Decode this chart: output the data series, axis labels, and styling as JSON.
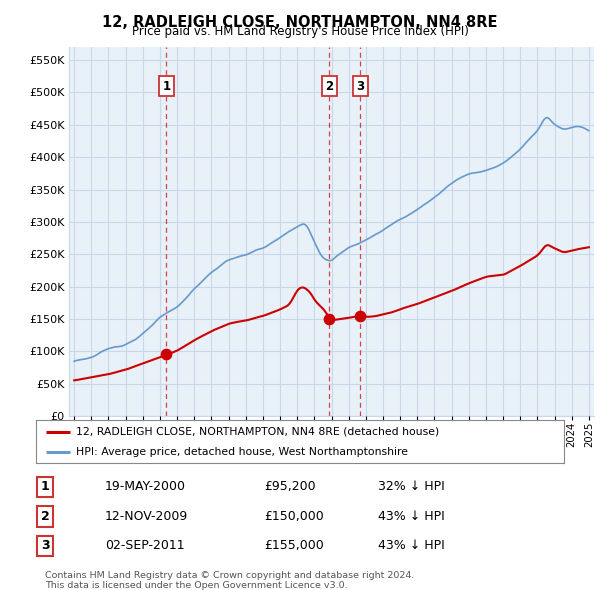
{
  "title": "12, RADLEIGH CLOSE, NORTHAMPTON, NN4 8RE",
  "subtitle": "Price paid vs. HM Land Registry's House Price Index (HPI)",
  "legend_line1": "12, RADLEIGH CLOSE, NORTHAMPTON, NN4 8RE (detached house)",
  "legend_line2": "HPI: Average price, detached house, West Northamptonshire",
  "footer1": "Contains HM Land Registry data © Crown copyright and database right 2024.",
  "footer2": "This data is licensed under the Open Government Licence v3.0.",
  "sales": [
    {
      "num": 1,
      "date": "19-MAY-2000",
      "price": 95200,
      "pct": "32% ↓ HPI",
      "year": 2000.38
    },
    {
      "num": 2,
      "date": "12-NOV-2009",
      "price": 150000,
      "pct": "43% ↓ HPI",
      "year": 2009.87
    },
    {
      "num": 3,
      "date": "02-SEP-2011",
      "price": 155000,
      "pct": "43% ↓ HPI",
      "year": 2011.67
    }
  ],
  "red_color": "#cc0000",
  "blue_color": "#6699cc",
  "blue_fill": "#ddeeff",
  "dashed_color": "#cc3333",
  "bg_color": "#ffffff",
  "chart_bg": "#e8f0f8",
  "grid_color": "#c8d8e8",
  "ylim": [
    0,
    570000
  ],
  "yticks": [
    0,
    50000,
    100000,
    150000,
    200000,
    250000,
    300000,
    350000,
    400000,
    450000,
    500000,
    550000
  ],
  "xlim_start": 1994.7,
  "xlim_end": 2025.3
}
